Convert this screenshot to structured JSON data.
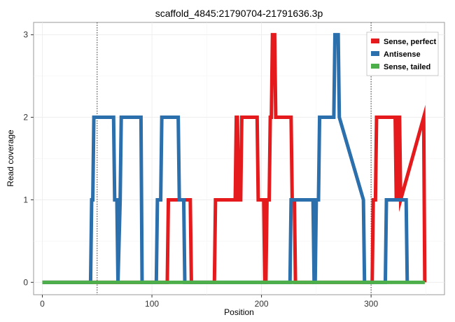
{
  "chart_data": {
    "type": "line",
    "title": "scaffold_4845:21790704-21791636.3p",
    "xlabel": "Position",
    "ylabel": "Read coverage",
    "xlim": [
      -8,
      367
    ],
    "ylim": [
      -0.15,
      3.15
    ],
    "xticks": [
      0,
      100,
      200,
      300
    ],
    "yticks": [
      0,
      1,
      2,
      3
    ],
    "vlines": [
      50,
      300
    ],
    "grid": true,
    "legend_position": "top-right",
    "series": [
      {
        "name": "Sense, perfect",
        "color": "#E41A1C",
        "x": [
          0,
          114,
          115,
          135,
          136,
          157,
          158,
          176,
          177,
          178,
          179,
          181,
          182,
          196,
          197,
          202,
          203,
          204,
          205,
          207,
          208,
          209,
          210,
          212,
          213,
          227,
          228,
          230,
          231,
          301,
          302,
          304,
          305,
          322,
          323,
          324,
          325,
          326,
          327,
          348,
          349
        ],
        "y": [
          0,
          0,
          1,
          1,
          0,
          0,
          1,
          1,
          2,
          2,
          1,
          1,
          2,
          2,
          1,
          1,
          0,
          0,
          1,
          1,
          2,
          2,
          3,
          3,
          2,
          2,
          1,
          1,
          0,
          0,
          1,
          1,
          2,
          2,
          1,
          1,
          2,
          2,
          1,
          2,
          0
        ]
      },
      {
        "name": "Antisense",
        "color": "#2C6FAD",
        "x": [
          0,
          44,
          45,
          46,
          47,
          65,
          66,
          68,
          69,
          71,
          72,
          90,
          91,
          104,
          105,
          108,
          109,
          124,
          125,
          129,
          130,
          226,
          227,
          247,
          248,
          249,
          250,
          252,
          253,
          266,
          267,
          270,
          271,
          293,
          294,
          313,
          314,
          332,
          333
        ],
        "y": [
          0,
          0,
          1,
          1,
          2,
          2,
          1,
          1,
          0,
          1,
          2,
          2,
          0,
          0,
          1,
          1,
          2,
          2,
          1,
          1,
          0,
          0,
          1,
          1,
          0,
          0,
          1,
          1,
          2,
          2,
          3,
          3,
          2,
          1,
          0,
          0,
          1,
          1,
          0
        ]
      },
      {
        "name": "Sense, tailed",
        "color": "#4DAF4A",
        "x": [
          0,
          349
        ],
        "y": [
          0,
          0
        ]
      }
    ]
  }
}
